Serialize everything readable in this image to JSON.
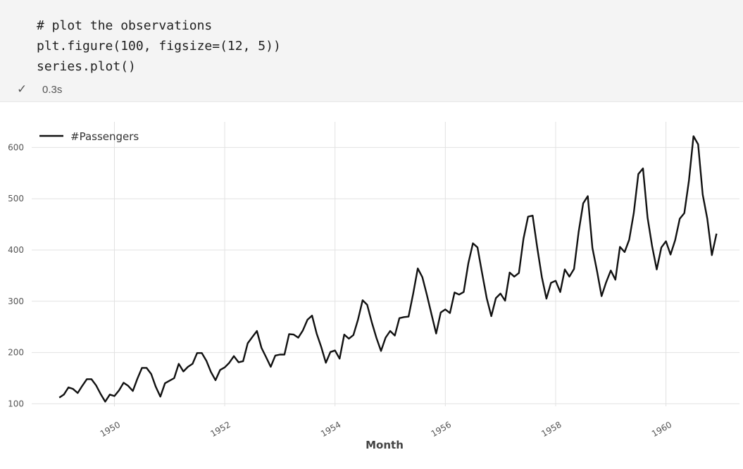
{
  "cell": {
    "code_lines": [
      "# plot the observations",
      "plt.figure(100, figsize=(12, 5))",
      "series.plot()"
    ],
    "status_icon": "check-icon",
    "exec_time": "0.3s"
  },
  "chart_data": {
    "type": "line",
    "title": "",
    "xlabel": "Month",
    "ylabel": "",
    "x_start": "1949-01",
    "x_freq": "monthly",
    "xticks": [
      "1950",
      "1952",
      "1954",
      "1956",
      "1958",
      "1960"
    ],
    "yticks": [
      "100",
      "200",
      "300",
      "400",
      "500",
      "600"
    ],
    "ylim": [
      95,
      650
    ],
    "xlim": [
      "1948-07",
      "1961-05"
    ],
    "grid": true,
    "legend_position": "top-left",
    "series": [
      {
        "name": "#Passengers",
        "color": "#111111",
        "values": [
          112,
          118,
          132,
          129,
          121,
          135,
          148,
          148,
          136,
          119,
          104,
          118,
          115,
          126,
          141,
          135,
          125,
          149,
          170,
          170,
          158,
          133,
          114,
          140,
          145,
          150,
          178,
          163,
          172,
          178,
          199,
          199,
          184,
          162,
          146,
          166,
          171,
          180,
          193,
          181,
          183,
          218,
          230,
          242,
          209,
          191,
          172,
          194,
          196,
          196,
          236,
          235,
          229,
          243,
          264,
          272,
          237,
          211,
          180,
          201,
          204,
          188,
          235,
          227,
          234,
          264,
          302,
          293,
          259,
          229,
          203,
          229,
          242,
          233,
          267,
          269,
          270,
          315,
          364,
          347,
          312,
          274,
          237,
          278,
          284,
          277,
          317,
          313,
          318,
          374,
          413,
          405,
          355,
          306,
          271,
          306,
          315,
          301,
          356,
          348,
          355,
          422,
          465,
          467,
          404,
          347,
          305,
          336,
          340,
          318,
          362,
          348,
          363,
          435,
          491,
          505,
          404,
          359,
          310,
          337,
          360,
          342,
          406,
          396,
          420,
          472,
          548,
          559,
          463,
          407,
          362,
          405,
          417,
          391,
          419,
          461,
          472,
          535,
          622,
          606,
          508,
          461,
          390,
          432
        ]
      }
    ]
  }
}
